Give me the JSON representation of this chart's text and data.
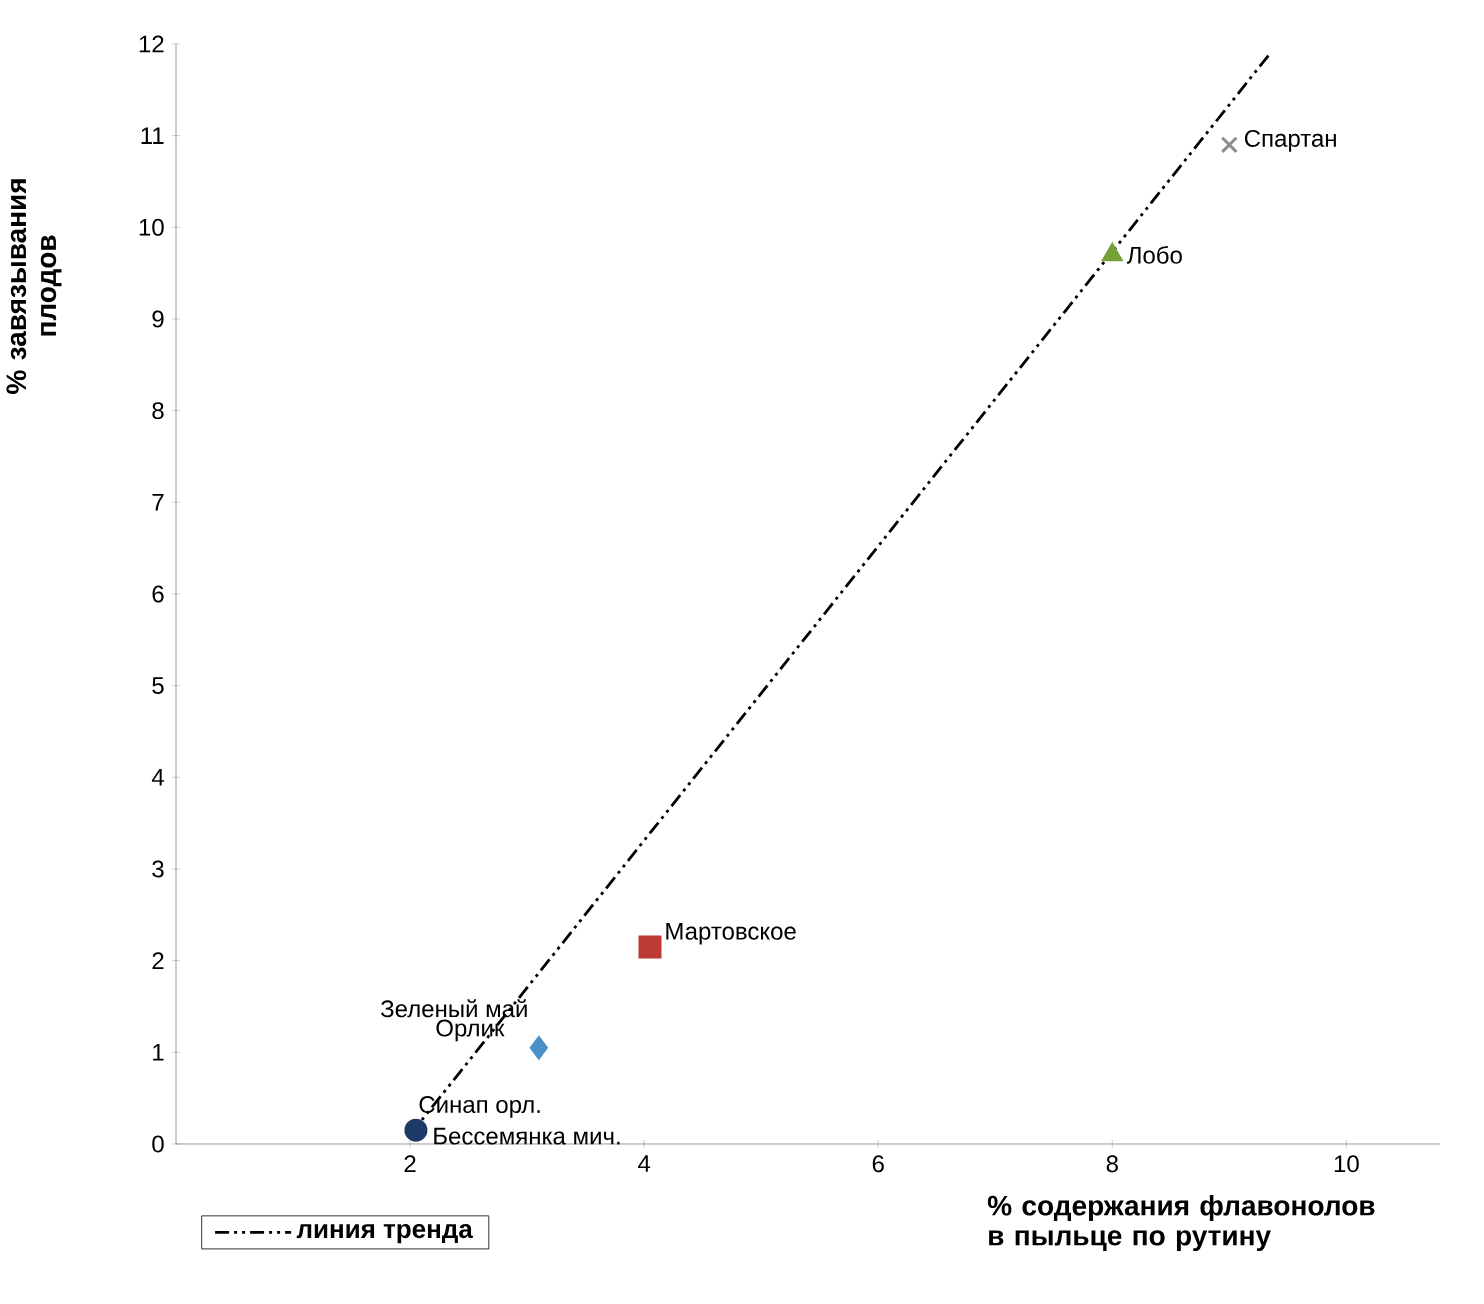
{
  "chart_data": {
    "type": "scatter",
    "xlabel": "% содержания флавонолов в пыльце  по рутину",
    "ylabel": "% завязывания плодов",
    "xlim": [
      0,
      10.8
    ],
    "xticks": [
      2,
      4,
      6,
      8,
      10
    ],
    "ylim": [
      0,
      12
    ],
    "yticks": [
      0,
      1,
      2,
      3,
      4,
      5,
      6,
      7,
      8,
      9,
      10,
      11,
      12
    ],
    "grid": false,
    "legend": "bottom left",
    "series": [
      {
        "type": "line",
        "name": "линия тренда",
        "x": [
          2.0,
          9.35
        ],
        "values": [
          0.1,
          11.9
        ],
        "color": "#000000",
        "line_style": "dashed",
        "marker": "none"
      },
      {
        "x": [
          9.0
        ],
        "values": [
          10.9
        ],
        "color": "#8c8c8c",
        "marker": "cross"
      },
      {
        "x": [
          8.0
        ],
        "values": [
          9.7
        ],
        "color": "#77a03a",
        "marker": "triangle"
      },
      {
        "x": [
          4.05
        ],
        "values": [
          2.15
        ],
        "color": "#be3a34",
        "marker": "square"
      },
      {
        "x": [
          3.1
        ],
        "values": [
          1.05
        ],
        "color": "#4a90c8",
        "marker": "diamond"
      },
      {
        "x": [
          2.05
        ],
        "values": [
          0.15
        ],
        "color": "#1f3a68",
        "marker": "circle"
      }
    ],
    "annotations": [
      {
        "text": "Спартан",
        "x": 9.0,
        "y": 10.9
      },
      {
        "text": "Лобо",
        "x": 8.0,
        "y": 9.7
      },
      {
        "text": "Мартовское",
        "x": 4.05,
        "y": 2.15
      },
      {
        "text": "Зеленый май",
        "x": 3.1,
        "y": 1.05
      },
      {
        "text": "Орлик",
        "x": 3.1,
        "y": 1.05
      },
      {
        "text": "Синап орл.",
        "x": 2.05,
        "y": 0.15
      },
      {
        "text": "Бессемянка мич.",
        "x": 2.05,
        "y": 0.15
      }
    ]
  }
}
